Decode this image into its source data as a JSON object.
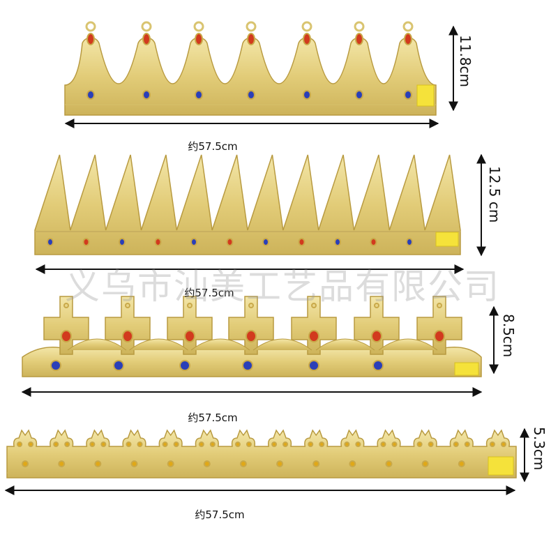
{
  "watermark": "义乌市汕美工艺品有限公司",
  "crowns": [
    {
      "height": "11.8cm",
      "width": "约57.5cm"
    },
    {
      "height": "12.5 cm",
      "width": "约57.5cm"
    },
    {
      "height": "8.5cm",
      "width": "约57.5cm"
    },
    {
      "height": "5.3cm",
      "width": "约57.5cm"
    }
  ]
}
